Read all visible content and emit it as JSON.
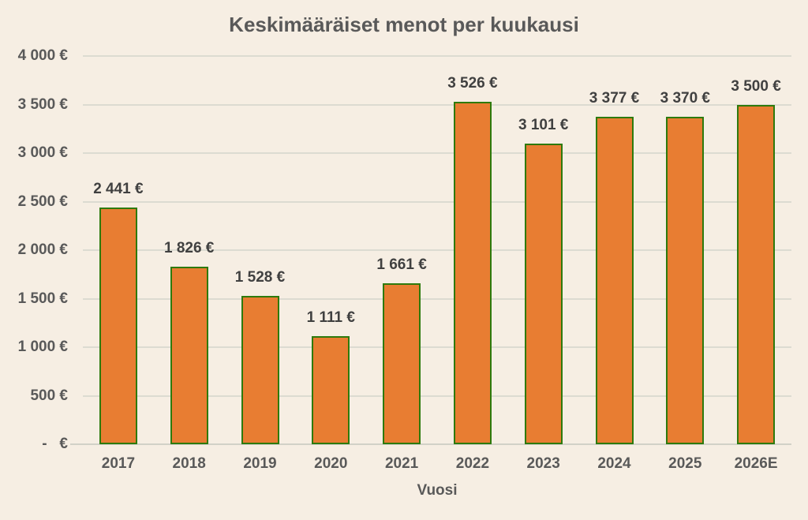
{
  "title": "Keskimääräiset menot per kuukausi",
  "chart_data": {
    "type": "bar",
    "title": "Keskimääräiset menot per kuukausi",
    "categories": [
      "2017",
      "2018",
      "2019",
      "2020",
      "2021",
      "2022",
      "2023",
      "2024",
      "2025",
      "2026E"
    ],
    "values": [
      2441,
      1826,
      1528,
      1111,
      1661,
      3526,
      3101,
      3377,
      3370,
      3500
    ],
    "value_labels": [
      "2 441 €",
      "1 826 €",
      "1 528 €",
      "1 111 €",
      "1 661 €",
      "3 526 €",
      "3 101 €",
      "3 377 €",
      "3 370 €",
      "3 500 €"
    ],
    "xlabel": "Vuosi",
    "ylabel": "",
    "ylim": [
      0,
      4000
    ],
    "ytick_step": 500,
    "ytick_labels": [
      "-   €",
      "500 €",
      "1 000 €",
      "1 500 €",
      "2 000 €",
      "2 500 €",
      "3 000 €",
      "3 500 €",
      "4 000 €"
    ],
    "grid": true,
    "legend": "none",
    "colors": {
      "background": "#F6EEE3",
      "bar_fill": "#E87D32",
      "bar_border": "#2E7A0D",
      "gridline": "#DCDBD1",
      "axis_line": "#D2D1C7",
      "title_text": "#595959",
      "data_label_text": "#404040",
      "tick_label_text": "#595959"
    }
  }
}
